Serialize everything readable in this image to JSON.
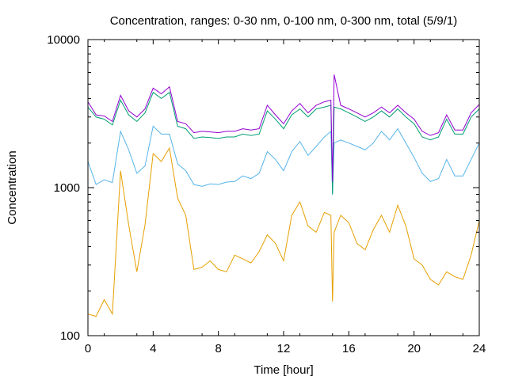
{
  "chart_data": {
    "type": "line",
    "title": "Concentration, ranges: 0-30 nm, 0-100 nm, 0-300 nm, total (5/9/1)",
    "xlabel": "Time [hour]",
    "ylabel": "Concentration",
    "xlim": [
      0,
      24
    ],
    "ylim": [
      100,
      10000
    ],
    "yscale": "log",
    "grid": false,
    "legend": "none",
    "x_ticks": [
      0,
      4,
      8,
      12,
      16,
      20,
      24
    ],
    "x_tick_labels": [
      "0",
      "4",
      "8",
      "12",
      "16",
      "20",
      "24"
    ],
    "y_ticks": [
      100,
      1000,
      10000
    ],
    "y_tick_labels": [
      "100",
      "1000",
      "10000"
    ],
    "x": [
      0,
      0.5,
      1,
      1.5,
      2,
      2.5,
      3,
      3.5,
      4,
      4.5,
      5,
      5.5,
      6,
      6.5,
      7,
      7.5,
      8,
      8.5,
      9,
      9.5,
      10,
      10.5,
      11,
      11.5,
      12,
      12.5,
      13,
      13.5,
      14,
      14.5,
      14.9,
      15,
      15.1,
      15.5,
      16,
      16.5,
      17,
      17.5,
      18,
      18.5,
      19,
      19.5,
      20,
      20.5,
      21,
      21.5,
      22,
      22.5,
      23,
      23.5,
      24
    ],
    "series": [
      {
        "color": "#e69f00",
        "values": [
          140,
          135,
          175,
          140,
          1300,
          560,
          270,
          560,
          1700,
          1500,
          1850,
          850,
          650,
          280,
          290,
          320,
          280,
          270,
          350,
          330,
          310,
          370,
          480,
          420,
          320,
          650,
          800,
          550,
          500,
          680,
          650,
          170,
          500,
          650,
          580,
          420,
          380,
          520,
          650,
          500,
          760,
          550,
          330,
          300,
          240,
          220,
          270,
          250,
          240,
          350,
          600
        ]
      },
      {
        "color": "#56b4e9",
        "values": [
          1500,
          1050,
          1130,
          1080,
          2400,
          1800,
          1250,
          1400,
          2600,
          2300,
          2300,
          1450,
          1300,
          1050,
          1020,
          1060,
          1050,
          1090,
          1100,
          1200,
          1150,
          1250,
          1750,
          1550,
          1300,
          1750,
          2050,
          1650,
          1900,
          2200,
          2400,
          900,
          2000,
          2100,
          2000,
          1900,
          1800,
          2000,
          2400,
          2100,
          2500,
          2000,
          1600,
          1250,
          1100,
          1150,
          1550,
          1200,
          1200,
          1550,
          2000
        ]
      },
      {
        "color": "#009e73",
        "values": [
          3500,
          3000,
          2900,
          2650,
          3900,
          3100,
          2800,
          3200,
          4400,
          4000,
          4400,
          2600,
          2500,
          2150,
          2200,
          2180,
          2150,
          2200,
          2200,
          2300,
          2250,
          2300,
          3300,
          2900,
          2500,
          3100,
          3400,
          3000,
          3400,
          3500,
          3600,
          900,
          3500,
          3400,
          3200,
          3000,
          2800,
          3000,
          3300,
          3000,
          3400,
          3000,
          2700,
          2200,
          2100,
          2200,
          2900,
          2300,
          2300,
          3000,
          3400
        ]
      },
      {
        "color": "#9400d3",
        "values": [
          3800,
          3100,
          3050,
          2800,
          4200,
          3300,
          3000,
          3400,
          4700,
          4300,
          4800,
          2800,
          2700,
          2350,
          2400,
          2380,
          2350,
          2400,
          2400,
          2500,
          2450,
          2500,
          3600,
          3100,
          2700,
          3300,
          3700,
          3200,
          3600,
          3800,
          3900,
          1100,
          5800,
          3600,
          3400,
          3200,
          3000,
          3200,
          3500,
          3200,
          3600,
          3200,
          2900,
          2400,
          2250,
          2350,
          3100,
          2450,
          2450,
          3200,
          3650
        ]
      }
    ]
  }
}
